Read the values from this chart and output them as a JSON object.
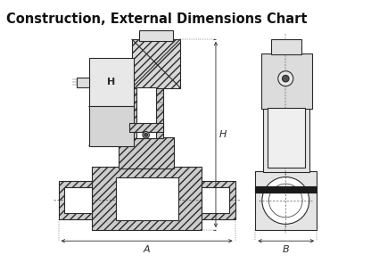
{
  "title": "Construction, External Dimensions Chart",
  "title_fontsize": 10.5,
  "title_fontweight": "bold",
  "bg_color": "#ffffff",
  "line_color": "#2a2a2a",
  "fig_width": 4.16,
  "fig_height": 2.95,
  "dpi": 100,
  "label_A": "A",
  "label_B": "B",
  "label_H": "H"
}
